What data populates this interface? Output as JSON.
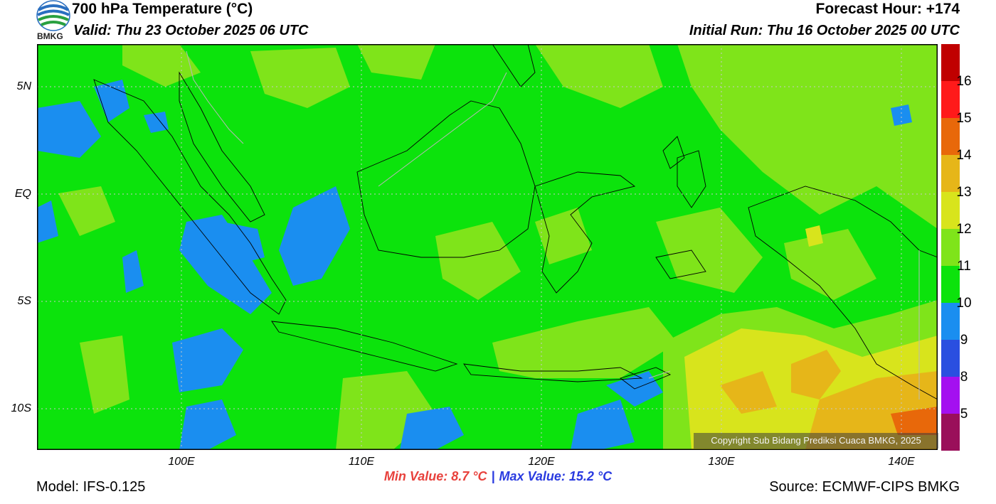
{
  "header": {
    "title": "700 hPa Temperature (°C)",
    "valid": "Valid: Thu 23 October 2025 06 UTC",
    "forecast_hour": "Forecast Hour: +174",
    "initial_run": "Initial Run: Thu 16 October 2025 00 UTC",
    "logo_text": "BMKG"
  },
  "map": {
    "lat_labels": [
      "5N",
      "EQ",
      "5S",
      "10S"
    ],
    "lon_labels": [
      "100E",
      "110E",
      "120E",
      "130E",
      "140E"
    ],
    "copyright": "Copyright Sub Bidang Prediksi Cuaca BMKG, 2025",
    "extent": {
      "lon_min": 92,
      "lon_max": 142,
      "lat_min": -12,
      "lat_max": 7
    }
  },
  "colorbar": {
    "labels": [
      "16",
      "15",
      "14",
      "13",
      "12",
      "11",
      "10",
      "9",
      "8",
      "5"
    ],
    "colors": [
      "#c00000",
      "#ff1a1a",
      "#e8680a",
      "#e6b619",
      "#d8e41c",
      "#7fe41a",
      "#0ce30c",
      "#1a8ef0",
      "#2a4fe0",
      "#a410f0",
      "#9a0f5a"
    ]
  },
  "stats": {
    "min": "Min Value: 8.7 °C",
    "separator": "|",
    "max": "Max Value: 15.2 °C"
  },
  "footer": {
    "model": "Model: IFS-0.125",
    "source": "Source: ECMWF-CIPS BMKG"
  }
}
